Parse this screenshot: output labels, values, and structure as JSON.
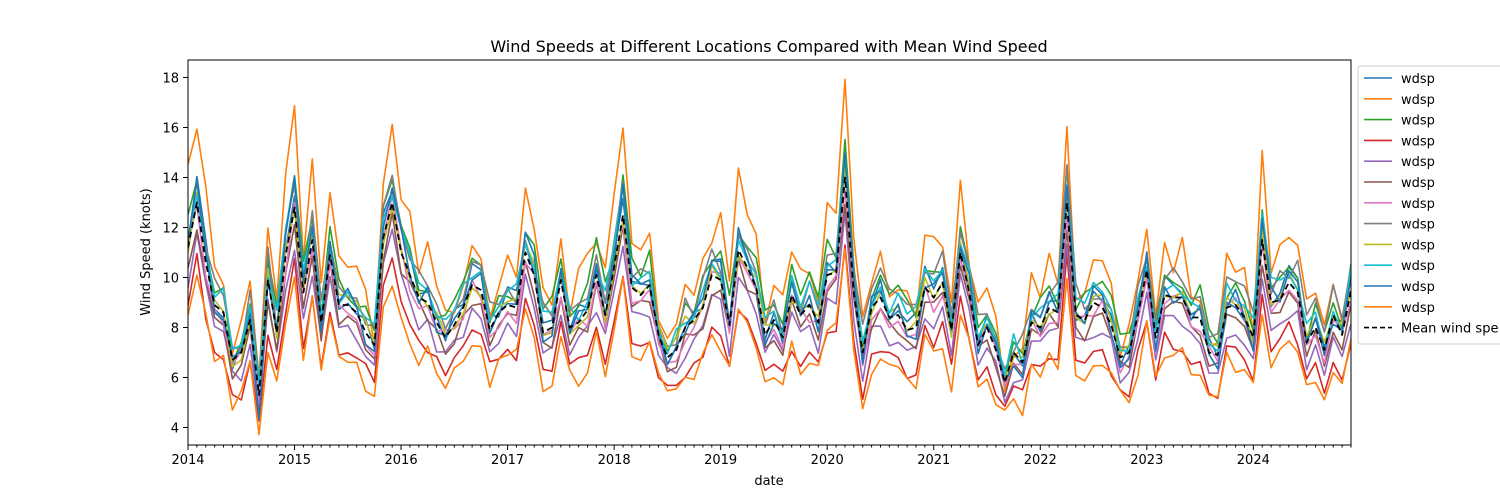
{
  "chart_data": {
    "type": "line",
    "title": "Wind Speeds at Different Locations Compared with Mean Wind Speed",
    "xlabel": "date",
    "ylabel": "Wind Speed (knots)",
    "xlim": [
      "2014-01",
      "2024-12"
    ],
    "ylim": [
      3.3,
      18.7
    ],
    "x_ticks": [
      "2014",
      "2015",
      "2016",
      "2017",
      "2018",
      "2019",
      "2020",
      "2021",
      "2022",
      "2023",
      "2024"
    ],
    "y_ticks": [
      "4",
      "6",
      "8",
      "10",
      "12",
      "14",
      "16",
      "18"
    ],
    "grid": false,
    "legend_position": "upper-right-outside",
    "mean_series": {
      "name": "Mean wind spe",
      "color": "#000000",
      "dash": true,
      "anchors": [
        [
          "2014-01",
          11.2
        ],
        [
          "2014-02",
          13.0
        ],
        [
          "2014-03",
          10.6
        ],
        [
          "2014-04",
          8.9
        ],
        [
          "2014-05",
          8.6
        ],
        [
          "2014-06",
          6.7
        ],
        [
          "2014-07",
          7.0
        ],
        [
          "2014-08",
          8.3
        ],
        [
          "2014-09",
          5.3
        ],
        [
          "2014-10",
          9.9
        ],
        [
          "2014-11",
          7.8
        ],
        [
          "2014-12",
          10.9
        ],
        [
          "2015-01",
          12.8
        ],
        [
          "2015-02",
          9.4
        ],
        [
          "2015-03",
          11.5
        ],
        [
          "2015-04",
          8.2
        ],
        [
          "2015-05",
          10.9
        ],
        [
          "2015-06",
          8.9
        ],
        [
          "2015-07",
          8.9
        ],
        [
          "2015-08",
          8.6
        ],
        [
          "2015-09",
          7.8
        ],
        [
          "2015-10",
          7.3
        ],
        [
          "2015-11",
          11.6
        ],
        [
          "2015-12",
          13.0
        ],
        [
          "2016-01",
          11.0
        ],
        [
          "2016-02",
          10.1
        ],
        [
          "2016-03",
          9.2
        ],
        [
          "2016-04",
          9.0
        ],
        [
          "2016-05",
          8.2
        ],
        [
          "2016-06",
          7.6
        ],
        [
          "2016-07",
          8.1
        ],
        [
          "2016-08",
          8.8
        ],
        [
          "2016-09",
          9.7
        ],
        [
          "2016-10",
          9.5
        ],
        [
          "2016-11",
          7.9
        ],
        [
          "2016-12",
          8.6
        ],
        [
          "2017-01",
          8.9
        ],
        [
          "2017-02",
          8.8
        ],
        [
          "2017-03",
          11.0
        ],
        [
          "2017-04",
          10.1
        ],
        [
          "2017-05",
          7.8
        ],
        [
          "2017-06",
          8.0
        ],
        [
          "2017-07",
          9.9
        ],
        [
          "2017-08",
          8.0
        ],
        [
          "2017-09",
          8.2
        ],
        [
          "2017-10",
          8.7
        ],
        [
          "2017-11",
          10.1
        ],
        [
          "2017-12",
          8.5
        ],
        [
          "2018-01",
          10.4
        ],
        [
          "2018-02",
          12.5
        ],
        [
          "2018-03",
          9.6
        ],
        [
          "2018-04",
          9.3
        ],
        [
          "2018-05",
          9.7
        ],
        [
          "2018-06",
          7.7
        ],
        [
          "2018-07",
          6.8
        ],
        [
          "2018-08",
          7.1
        ],
        [
          "2018-09",
          8.0
        ],
        [
          "2018-10",
          8.3
        ],
        [
          "2018-11",
          8.8
        ],
        [
          "2018-12",
          10.1
        ],
        [
          "2019-01",
          9.9
        ],
        [
          "2019-02",
          8.1
        ],
        [
          "2019-03",
          11.1
        ],
        [
          "2019-04",
          10.4
        ],
        [
          "2019-05",
          9.6
        ],
        [
          "2019-06",
          7.7
        ],
        [
          "2019-07",
          8.3
        ],
        [
          "2019-08",
          7.6
        ],
        [
          "2019-09",
          9.3
        ],
        [
          "2019-10",
          8.5
        ],
        [
          "2019-11",
          8.9
        ],
        [
          "2019-12",
          8.2
        ],
        [
          "2020-01",
          10.1
        ],
        [
          "2020-02",
          10.2
        ],
        [
          "2020-03",
          14.0
        ],
        [
          "2020-04",
          9.4
        ],
        [
          "2020-05",
          7.0
        ],
        [
          "2020-06",
          8.8
        ],
        [
          "2020-07",
          9.2
        ],
        [
          "2020-08",
          8.4
        ],
        [
          "2020-09",
          8.5
        ],
        [
          "2020-10",
          7.9
        ],
        [
          "2020-11",
          8.0
        ],
        [
          "2020-12",
          9.6
        ],
        [
          "2021-01",
          9.2
        ],
        [
          "2021-02",
          9.8
        ],
        [
          "2021-03",
          7.9
        ],
        [
          "2021-04",
          11.0
        ],
        [
          "2021-05",
          9.4
        ],
        [
          "2021-06",
          7.3
        ],
        [
          "2021-07",
          8.0
        ],
        [
          "2021-08",
          7.1
        ],
        [
          "2021-09",
          5.8
        ],
        [
          "2021-10",
          7.0
        ],
        [
          "2021-11",
          6.6
        ],
        [
          "2021-12",
          8.2
        ],
        [
          "2022-01",
          8.0
        ],
        [
          "2022-02",
          8.8
        ],
        [
          "2022-03",
          8.6
        ],
        [
          "2022-04",
          13.0
        ],
        [
          "2022-05",
          8.5
        ],
        [
          "2022-06",
          8.3
        ],
        [
          "2022-07",
          9.0
        ],
        [
          "2022-08",
          8.8
        ],
        [
          "2022-09",
          8.1
        ],
        [
          "2022-10",
          6.8
        ],
        [
          "2022-11",
          7.0
        ],
        [
          "2022-12",
          8.5
        ],
        [
          "2023-01",
          10.3
        ],
        [
          "2023-02",
          7.6
        ],
        [
          "2023-03",
          9.3
        ],
        [
          "2023-04",
          9.2
        ],
        [
          "2023-05",
          9.2
        ],
        [
          "2023-06",
          8.4
        ],
        [
          "2023-07",
          8.4
        ],
        [
          "2023-08",
          7.0
        ],
        [
          "2023-09",
          6.9
        ],
        [
          "2023-10",
          8.8
        ],
        [
          "2023-11",
          8.9
        ],
        [
          "2023-12",
          8.4
        ],
        [
          "2024-01",
          7.6
        ],
        [
          "2024-02",
          11.5
        ],
        [
          "2024-03",
          9.0
        ],
        [
          "2024-04",
          9.1
        ],
        [
          "2024-05",
          9.8
        ],
        [
          "2024-06",
          9.4
        ],
        [
          "2024-07",
          7.4
        ],
        [
          "2024-08",
          8.0
        ],
        [
          "2024-09",
          7.1
        ],
        [
          "2024-10",
          8.5
        ],
        [
          "2024-11",
          7.7
        ],
        [
          "2024-12",
          9.5
        ]
      ]
    },
    "series": [
      {
        "name": "wdsp",
        "color": "#1f77b4",
        "offset": 0.3,
        "amp": 1.1,
        "noise": 0.5
      },
      {
        "name": "wdsp",
        "color": "#ff7f0e",
        "offset": 1.6,
        "amp": 1.45,
        "noise": 0.9
      },
      {
        "name": "wdsp",
        "color": "#2ca02c",
        "offset": 0.8,
        "amp": 1.15,
        "noise": 0.6
      },
      {
        "name": "wdsp",
        "color": "#d62728",
        "offset": -1.8,
        "amp": 0.85,
        "noise": 0.4
      },
      {
        "name": "wdsp",
        "color": "#9467bd",
        "offset": -1.0,
        "amp": 0.9,
        "noise": 0.4
      },
      {
        "name": "wdsp",
        "color": "#8c564b",
        "offset": -0.5,
        "amp": 0.95,
        "noise": 0.4
      },
      {
        "name": "wdsp",
        "color": "#e377c2",
        "offset": -0.2,
        "amp": 1.0,
        "noise": 0.5
      },
      {
        "name": "wdsp",
        "color": "#7f7f7f",
        "offset": 0.7,
        "amp": 1.05,
        "noise": 0.6
      },
      {
        "name": "wdsp",
        "color": "#bcbd22",
        "offset": 0.1,
        "amp": 1.0,
        "noise": 0.4
      },
      {
        "name": "wdsp",
        "color": "#17becf",
        "offset": 0.5,
        "amp": 1.05,
        "noise": 0.5
      },
      {
        "name": "wdsp",
        "color": "#1f77b4",
        "offset": 0.2,
        "amp": 1.2,
        "noise": 0.5
      },
      {
        "name": "wdsp",
        "color": "#ff7f0e",
        "offset": -2.2,
        "amp": 0.8,
        "noise": 0.5
      }
    ]
  }
}
